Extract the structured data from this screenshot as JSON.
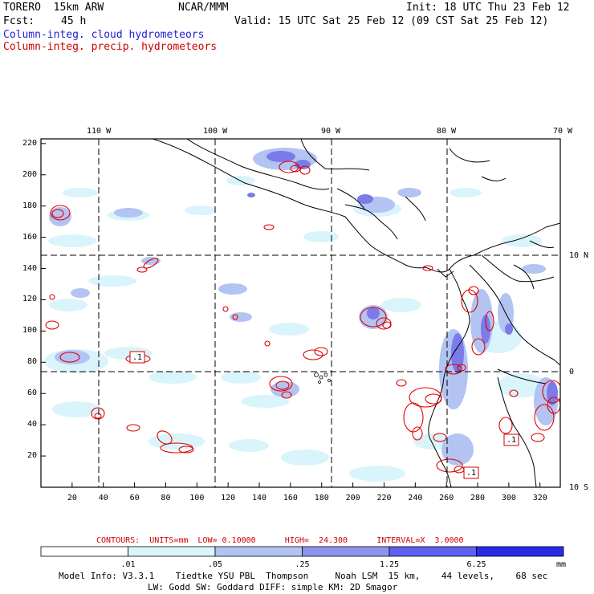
{
  "header": {
    "model": "TORERO  15km ARW",
    "center": "NCAR/MMM",
    "init": "Init: 18 UTC Thu 23 Feb 12",
    "fcst_label": "Fcst:",
    "fcst_value": "45 h",
    "valid": "Valid: 15 UTC Sat 25 Feb 12 (09 CST Sat 25 Feb 12)"
  },
  "legend": {
    "cloud": "Column-integ. cloud hydrometeors",
    "precip": "Column-integ. precip. hydrometeors"
  },
  "map": {
    "lon_labels": [
      "110 W",
      "100 W",
      "90 W",
      "80 W",
      "70 W"
    ],
    "lat_labels": [
      "10 N",
      "0",
      "10 S"
    ],
    "x_ticks": [
      "20",
      "40",
      "60",
      "80",
      "100",
      "120",
      "140",
      "160",
      "180",
      "200",
      "220",
      "240",
      "260",
      "280",
      "300",
      "320"
    ],
    "y_ticks": [
      "20",
      "40",
      "60",
      "80",
      "100",
      "120",
      "140",
      "160",
      "180",
      "200",
      "220"
    ],
    "contour_labels": [
      ".1",
      ".1",
      ".1"
    ]
  },
  "contours_info": {
    "text": "CONTOURS:  UNITS=mm  LOW= 0.10000      HIGH=  24.300      INTERVAL=X  3.0000"
  },
  "colorbar": {
    "labels": [
      ".01",
      ".05",
      ".25",
      "1.25",
      "6.25"
    ],
    "units": "mm",
    "colors": [
      "#ffffff",
      "#d9f4fb",
      "#b3c3f2",
      "#8e93ee",
      "#5f5ff0",
      "#2a2ae8"
    ]
  },
  "footer": {
    "line1": "Model Info: V3.3.1    Tiedtke YSU PBL  Thompson     Noah LSM  15 km,    44 levels,    68 sec",
    "line2": "LW: Godd SW: Goddard DIFF: simple KM: 2D Smagor"
  }
}
